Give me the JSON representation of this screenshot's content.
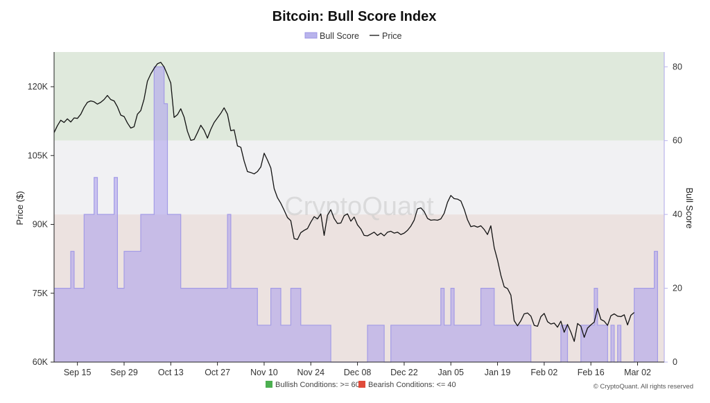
{
  "chart_data": {
    "type": "line+area",
    "title": "Bitcoin: Bull Score Index",
    "legend": [
      {
        "name": "Bull Score",
        "color": "#b8b3ec"
      },
      {
        "name": "Price",
        "color": "#111111"
      }
    ],
    "ylabel_left": "Price ($)",
    "ylabel_right": "Bull Score",
    "left_ticks": [
      "60K",
      "75K",
      "90K",
      "105K",
      "120K"
    ],
    "left_tick_values": [
      60000,
      75000,
      90000,
      105000,
      120000
    ],
    "right_ticks": [
      "0",
      "20",
      "40",
      "60",
      "80"
    ],
    "right_tick_values": [
      0,
      20,
      40,
      60,
      80
    ],
    "ylim_left": [
      60000,
      120000
    ],
    "ylim_right": [
      0,
      84
    ],
    "x_ticks": [
      "Sep 15",
      "Sep 29",
      "Oct 13",
      "Oct 27",
      "Nov 10",
      "Nov 24",
      "Dec 08",
      "Dec 22",
      "Jan 05",
      "Jan 19",
      "Feb 02",
      "Feb 16",
      "Mar 02"
    ],
    "x_tick_days": [
      7,
      21,
      35,
      49,
      63,
      77,
      91,
      105,
      119,
      133,
      147,
      161,
      175
    ],
    "xlim_days": [
      0,
      183
    ],
    "zones": [
      {
        "from": 60,
        "to": 84,
        "color": "#dfe9dc"
      },
      {
        "from": 40,
        "to": 60,
        "color": "#f1f1f3"
      },
      {
        "from": 0,
        "to": 40,
        "color": "#ece2e0"
      }
    ],
    "bull_score": [
      [
        0,
        20
      ],
      [
        5,
        20
      ],
      [
        5,
        30
      ],
      [
        6,
        30
      ],
      [
        6,
        20
      ],
      [
        9,
        20
      ],
      [
        9,
        40
      ],
      [
        12,
        40
      ],
      [
        12,
        50
      ],
      [
        13,
        50
      ],
      [
        13,
        40
      ],
      [
        18,
        40
      ],
      [
        18,
        50
      ],
      [
        19,
        50
      ],
      [
        19,
        20
      ],
      [
        21,
        20
      ],
      [
        21,
        30
      ],
      [
        26,
        30
      ],
      [
        26,
        40
      ],
      [
        30,
        40
      ],
      [
        30,
        80
      ],
      [
        33,
        80
      ],
      [
        33,
        70
      ],
      [
        34,
        70
      ],
      [
        34,
        40
      ],
      [
        38,
        40
      ],
      [
        38,
        20
      ],
      [
        52,
        20
      ],
      [
        52,
        40
      ],
      [
        53,
        40
      ],
      [
        53,
        20
      ],
      [
        61,
        20
      ],
      [
        61,
        10
      ],
      [
        65,
        10
      ],
      [
        65,
        20
      ],
      [
        68,
        20
      ],
      [
        68,
        10
      ],
      [
        71,
        10
      ],
      [
        71,
        20
      ],
      [
        74,
        20
      ],
      [
        74,
        10
      ],
      [
        83,
        10
      ],
      [
        83,
        0
      ],
      [
        94,
        0
      ],
      [
        94,
        10
      ],
      [
        99,
        10
      ],
      [
        99,
        0
      ],
      [
        101,
        0
      ],
      [
        101,
        10
      ],
      [
        116,
        10
      ],
      [
        116,
        20
      ],
      [
        117,
        20
      ],
      [
        117,
        10
      ],
      [
        119,
        10
      ],
      [
        119,
        20
      ],
      [
        120,
        20
      ],
      [
        120,
        10
      ],
      [
        128,
        10
      ],
      [
        128,
        20
      ],
      [
        132,
        20
      ],
      [
        132,
        10
      ],
      [
        143,
        10
      ],
      [
        143,
        0
      ],
      [
        152,
        0
      ],
      [
        152,
        10
      ],
      [
        154,
        10
      ],
      [
        154,
        0
      ],
      [
        158,
        0
      ],
      [
        158,
        10
      ],
      [
        162,
        10
      ],
      [
        162,
        20
      ],
      [
        163,
        20
      ],
      [
        163,
        10
      ],
      [
        166,
        10
      ],
      [
        166,
        0
      ],
      [
        167,
        0
      ],
      [
        167,
        10
      ],
      [
        168,
        10
      ],
      [
        168,
        0
      ],
      [
        169,
        0
      ],
      [
        169,
        10
      ],
      [
        170,
        10
      ],
      [
        170,
        0
      ],
      [
        174,
        0
      ],
      [
        174,
        20
      ],
      [
        180,
        20
      ],
      [
        180,
        30
      ],
      [
        181,
        30
      ],
      [
        181,
        0
      ]
    ],
    "price": [
      [
        0,
        110000
      ],
      [
        1,
        111500
      ],
      [
        2,
        112700
      ],
      [
        3,
        112200
      ],
      [
        4,
        113000
      ],
      [
        5,
        112300
      ],
      [
        6,
        113200
      ],
      [
        7,
        113100
      ],
      [
        8,
        114000
      ],
      [
        9,
        115500
      ],
      [
        10,
        116600
      ],
      [
        11,
        116900
      ],
      [
        12,
        116700
      ],
      [
        13,
        116200
      ],
      [
        14,
        116600
      ],
      [
        15,
        117200
      ],
      [
        16,
        118100
      ],
      [
        17,
        117200
      ],
      [
        18,
        116900
      ],
      [
        19,
        115600
      ],
      [
        20,
        113800
      ],
      [
        21,
        113500
      ],
      [
        22,
        112100
      ],
      [
        23,
        111000
      ],
      [
        24,
        111300
      ],
      [
        25,
        114000
      ],
      [
        26,
        114800
      ],
      [
        27,
        117300
      ],
      [
        28,
        121200
      ],
      [
        29,
        122800
      ],
      [
        30,
        124000
      ],
      [
        31,
        125000
      ],
      [
        32,
        125300
      ],
      [
        33,
        124300
      ],
      [
        34,
        122600
      ],
      [
        35,
        120800
      ],
      [
        36,
        113300
      ],
      [
        37,
        113900
      ],
      [
        38,
        115200
      ],
      [
        39,
        113400
      ],
      [
        40,
        110300
      ],
      [
        41,
        108300
      ],
      [
        42,
        108500
      ],
      [
        43,
        110000
      ],
      [
        44,
        111600
      ],
      [
        45,
        110500
      ],
      [
        46,
        108800
      ],
      [
        47,
        110700
      ],
      [
        48,
        112200
      ],
      [
        49,
        113200
      ],
      [
        50,
        114200
      ],
      [
        51,
        115400
      ],
      [
        52,
        114000
      ],
      [
        53,
        110400
      ],
      [
        54,
        110600
      ],
      [
        55,
        107100
      ],
      [
        56,
        106800
      ],
      [
        57,
        103800
      ],
      [
        58,
        101500
      ],
      [
        59,
        101300
      ],
      [
        60,
        101000
      ],
      [
        61,
        101500
      ],
      [
        62,
        102500
      ],
      [
        63,
        105500
      ],
      [
        64,
        104000
      ],
      [
        65,
        102300
      ],
      [
        66,
        97800
      ],
      [
        67,
        95800
      ],
      [
        68,
        94600
      ],
      [
        69,
        93100
      ],
      [
        70,
        91500
      ],
      [
        71,
        90800
      ],
      [
        72,
        86900
      ],
      [
        73,
        86700
      ],
      [
        74,
        88200
      ],
      [
        75,
        88700
      ],
      [
        76,
        89100
      ],
      [
        77,
        90500
      ],
      [
        78,
        91700
      ],
      [
        79,
        91200
      ],
      [
        80,
        92300
      ],
      [
        81,
        87600
      ],
      [
        82,
        92000
      ],
      [
        83,
        93200
      ],
      [
        84,
        91300
      ],
      [
        85,
        90200
      ],
      [
        86,
        90300
      ],
      [
        87,
        91900
      ],
      [
        88,
        92300
      ],
      [
        89,
        90700
      ],
      [
        90,
        91600
      ],
      [
        91,
        89900
      ],
      [
        92,
        89000
      ],
      [
        93,
        87600
      ],
      [
        94,
        87500
      ],
      [
        95,
        87900
      ],
      [
        96,
        88300
      ],
      [
        97,
        87600
      ],
      [
        98,
        88100
      ],
      [
        99,
        87500
      ],
      [
        100,
        88300
      ],
      [
        101,
        88500
      ],
      [
        102,
        88100
      ],
      [
        103,
        88300
      ],
      [
        104,
        87800
      ],
      [
        105,
        88100
      ],
      [
        106,
        88700
      ],
      [
        107,
        89600
      ],
      [
        108,
        90900
      ],
      [
        109,
        93400
      ],
      [
        110,
        93600
      ],
      [
        111,
        92800
      ],
      [
        112,
        91300
      ],
      [
        113,
        90900
      ],
      [
        114,
        91000
      ],
      [
        115,
        90900
      ],
      [
        116,
        91200
      ],
      [
        117,
        92400
      ],
      [
        118,
        94800
      ],
      [
        119,
        96300
      ],
      [
        120,
        95600
      ],
      [
        121,
        95500
      ],
      [
        122,
        95100
      ],
      [
        123,
        93300
      ],
      [
        124,
        91000
      ],
      [
        125,
        89500
      ],
      [
        126,
        89700
      ],
      [
        127,
        89400
      ],
      [
        128,
        89700
      ],
      [
        129,
        88900
      ],
      [
        130,
        87800
      ],
      [
        131,
        89700
      ],
      [
        132,
        84900
      ],
      [
        133,
        82200
      ],
      [
        134,
        78900
      ],
      [
        135,
        76400
      ],
      [
        136,
        76000
      ],
      [
        137,
        74600
      ],
      [
        138,
        69000
      ],
      [
        139,
        67900
      ],
      [
        140,
        69000
      ],
      [
        141,
        70500
      ],
      [
        142,
        70700
      ],
      [
        143,
        70000
      ],
      [
        144,
        68000
      ],
      [
        145,
        67800
      ],
      [
        146,
        69900
      ],
      [
        147,
        70600
      ],
      [
        148,
        68800
      ],
      [
        149,
        68300
      ],
      [
        150,
        68500
      ],
      [
        151,
        67600
      ],
      [
        152,
        68900
      ],
      [
        153,
        66500
      ],
      [
        154,
        68200
      ],
      [
        155,
        66500
      ],
      [
        156,
        64500
      ],
      [
        157,
        68400
      ],
      [
        158,
        67800
      ],
      [
        159,
        65400
      ],
      [
        160,
        67400
      ],
      [
        161,
        68100
      ],
      [
        162,
        68700
      ],
      [
        163,
        71700
      ],
      [
        164,
        69300
      ],
      [
        165,
        68900
      ],
      [
        166,
        68000
      ],
      [
        167,
        70100
      ],
      [
        168,
        70500
      ],
      [
        169,
        70000
      ],
      [
        170,
        69900
      ],
      [
        171,
        70300
      ],
      [
        172,
        68100
      ],
      [
        173,
        70200
      ],
      [
        174,
        70800
      ]
    ],
    "watermark": "CryptoQuant",
    "footer_legend": [
      {
        "label": "Bullish Conditions: >= 60",
        "color": "#4caf50"
      },
      {
        "label": "Bearish Conditions: <= 40",
        "color": "#e04b3a"
      }
    ],
    "credit": "© CryptoQuant. All rights reserved"
  }
}
